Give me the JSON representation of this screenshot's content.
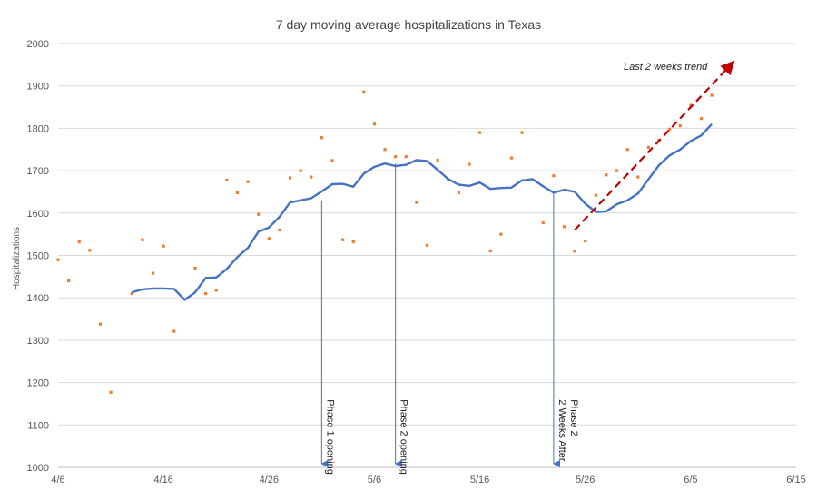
{
  "chart_data": {
    "type": "line",
    "title": "7 day moving average hospitalizations in Texas",
    "xlabel": "",
    "ylabel": "Hospitalizations",
    "x_axis": {
      "type": "date",
      "range": [
        "2020-04-06",
        "2020-06-15"
      ],
      "ticks": [
        "2020-04-06",
        "2020-04-16",
        "2020-04-26",
        "2020-05-06",
        "2020-05-16",
        "2020-05-26",
        "2020-06-05",
        "2020-06-15"
      ],
      "tick_labels": [
        "4/6",
        "4/16",
        "4/26",
        "5/6",
        "5/16",
        "5/26",
        "6/5",
        "6/15"
      ]
    },
    "y_axis": {
      "range": [
        1000,
        2000
      ],
      "ticks": [
        1000,
        1100,
        1200,
        1300,
        1400,
        1500,
        1600,
        1700,
        1800,
        1900,
        2000
      ],
      "tick_labels": [
        "1000",
        "1100",
        "1200",
        "1300",
        "1400",
        "1500",
        "1600",
        "1700",
        "1800",
        "1900",
        "2000"
      ]
    },
    "grid": "horizontal",
    "colors": {
      "line": "#4472c4",
      "dots": "#ed7d31",
      "trend": "#c00000",
      "marker": "#4472c4",
      "grid": "#d9d9d9"
    },
    "series": [
      {
        "kind": "line",
        "values": [
          [
            "2020-04-13",
            1413
          ],
          [
            "2020-04-14",
            1420
          ],
          [
            "2020-04-15",
            1422
          ],
          [
            "2020-04-16",
            1422
          ],
          [
            "2020-04-17",
            1421
          ],
          [
            "2020-04-18",
            1395
          ],
          [
            "2020-04-19",
            1413
          ],
          [
            "2020-04-20",
            1447
          ],
          [
            "2020-04-21",
            1448
          ],
          [
            "2020-04-22",
            1468
          ],
          [
            "2020-04-23",
            1496
          ],
          [
            "2020-04-24",
            1518
          ],
          [
            "2020-04-25",
            1556
          ],
          [
            "2020-04-26",
            1566
          ],
          [
            "2020-04-27",
            1591
          ],
          [
            "2020-04-28",
            1625
          ],
          [
            "2020-04-29",
            1630
          ],
          [
            "2020-04-30",
            1635
          ],
          [
            "2020-05-01",
            1651
          ],
          [
            "2020-05-02",
            1668
          ],
          [
            "2020-05-03",
            1669
          ],
          [
            "2020-05-04",
            1662
          ],
          [
            "2020-05-05",
            1693
          ],
          [
            "2020-05-06",
            1709
          ],
          [
            "2020-05-07",
            1717
          ],
          [
            "2020-05-08",
            1711
          ],
          [
            "2020-05-09",
            1714
          ],
          [
            "2020-05-10",
            1725
          ],
          [
            "2020-05-11",
            1723
          ],
          [
            "2020-05-12",
            1702
          ],
          [
            "2020-05-13",
            1680
          ],
          [
            "2020-05-14",
            1667
          ],
          [
            "2020-05-15",
            1664
          ],
          [
            "2020-05-16",
            1672
          ],
          [
            "2020-05-17",
            1657
          ],
          [
            "2020-05-18",
            1659
          ],
          [
            "2020-05-19",
            1660
          ],
          [
            "2020-05-20",
            1677
          ],
          [
            "2020-05-21",
            1680
          ],
          [
            "2020-05-22",
            1663
          ],
          [
            "2020-05-23",
            1648
          ],
          [
            "2020-05-24",
            1655
          ],
          [
            "2020-05-25",
            1650
          ],
          [
            "2020-05-26",
            1622
          ],
          [
            "2020-05-27",
            1603
          ],
          [
            "2020-05-28",
            1604
          ],
          [
            "2020-05-29",
            1621
          ],
          [
            "2020-05-30",
            1630
          ],
          [
            "2020-05-31",
            1646
          ],
          [
            "2020-06-01",
            1680
          ],
          [
            "2020-06-02",
            1713
          ],
          [
            "2020-06-03",
            1736
          ],
          [
            "2020-06-04",
            1750
          ],
          [
            "2020-06-05",
            1770
          ],
          [
            "2020-06-06",
            1783
          ],
          [
            "2020-06-07",
            1810
          ]
        ]
      },
      {
        "kind": "scatter",
        "values": [
          [
            "2020-04-06",
            1490
          ],
          [
            "2020-04-07",
            1440
          ],
          [
            "2020-04-08",
            1532
          ],
          [
            "2020-04-09",
            1512
          ],
          [
            "2020-04-10",
            1338
          ],
          [
            "2020-04-11",
            1177
          ],
          [
            "2020-04-13",
            1410
          ],
          [
            "2020-04-14",
            1537
          ],
          [
            "2020-04-15",
            1458
          ],
          [
            "2020-04-16",
            1522
          ],
          [
            "2020-04-17",
            1321
          ],
          [
            "2020-04-19",
            1470
          ],
          [
            "2020-04-20",
            1410
          ],
          [
            "2020-04-21",
            1418
          ],
          [
            "2020-04-22",
            1678
          ],
          [
            "2020-04-23",
            1648
          ],
          [
            "2020-04-24",
            1674
          ],
          [
            "2020-04-25",
            1597
          ],
          [
            "2020-04-26",
            1540
          ],
          [
            "2020-04-27",
            1560
          ],
          [
            "2020-04-28",
            1683
          ],
          [
            "2020-04-29",
            1700
          ],
          [
            "2020-04-30",
            1685
          ],
          [
            "2020-05-01",
            1778
          ],
          [
            "2020-05-02",
            1724
          ],
          [
            "2020-05-03",
            1537
          ],
          [
            "2020-05-04",
            1532
          ],
          [
            "2020-05-05",
            1886
          ],
          [
            "2020-05-06",
            1810
          ],
          [
            "2020-05-07",
            1750
          ],
          [
            "2020-05-08",
            1733
          ],
          [
            "2020-05-09",
            1733
          ],
          [
            "2020-05-10",
            1625
          ],
          [
            "2020-05-11",
            1524
          ],
          [
            "2020-05-12",
            1725
          ],
          [
            "2020-05-13",
            1678
          ],
          [
            "2020-05-14",
            1648
          ],
          [
            "2020-05-15",
            1715
          ],
          [
            "2020-05-16",
            1790
          ],
          [
            "2020-05-17",
            1511
          ],
          [
            "2020-05-18",
            1550
          ],
          [
            "2020-05-19",
            1730
          ],
          [
            "2020-05-20",
            1790
          ],
          [
            "2020-05-22",
            1577
          ],
          [
            "2020-05-23",
            1688
          ],
          [
            "2020-05-24",
            1568
          ],
          [
            "2020-05-25",
            1510
          ],
          [
            "2020-05-26",
            1534
          ],
          [
            "2020-05-27",
            1642
          ],
          [
            "2020-05-28",
            1690
          ],
          [
            "2020-05-29",
            1700
          ],
          [
            "2020-05-30",
            1750
          ],
          [
            "2020-05-31",
            1685
          ],
          [
            "2020-06-01",
            1755
          ],
          [
            "2020-06-02",
            1772
          ],
          [
            "2020-06-03",
            1798
          ],
          [
            "2020-06-04",
            1806
          ],
          [
            "2020-06-05",
            1854
          ],
          [
            "2020-06-06",
            1823
          ],
          [
            "2020-06-07",
            1878
          ]
        ]
      }
    ],
    "annotations": [
      {
        "kind": "vline",
        "x": "2020-05-01",
        "y_top": 1630,
        "text": "Phase 1 opening"
      },
      {
        "kind": "vline",
        "x": "2020-05-08",
        "y_top": 1717,
        "text": "Phase 2 opening"
      },
      {
        "kind": "vline",
        "x": "2020-05-23",
        "y_top": 1648,
        "text": "2 Weeks After Phase 2"
      },
      {
        "kind": "trend",
        "from": [
          "2020-05-25",
          1560
        ],
        "to": [
          "2020-06-09",
          1955
        ],
        "text": "Last 2 weeks trend"
      }
    ]
  }
}
